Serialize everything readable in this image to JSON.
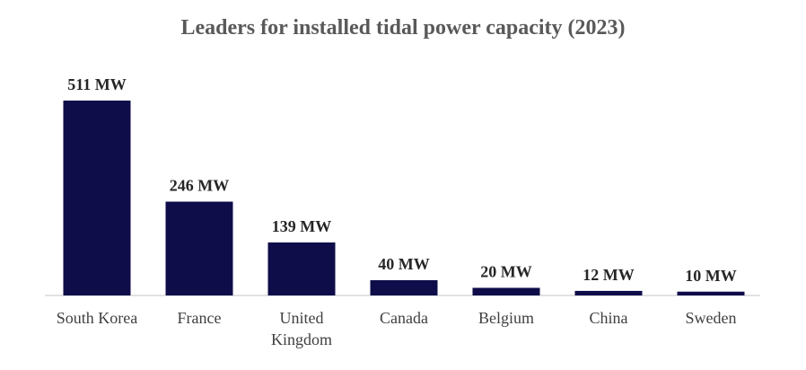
{
  "chart_data": {
    "type": "bar",
    "title": "Leaders for installed tidal power capacity (2023)",
    "categories": [
      [
        "South Korea"
      ],
      [
        "France"
      ],
      [
        "United",
        "Kingdom"
      ],
      [
        "Canada"
      ],
      [
        "Belgium"
      ],
      [
        "China"
      ],
      [
        "Sweden"
      ]
    ],
    "values": [
      511,
      246,
      139,
      40,
      20,
      12,
      10
    ],
    "data_labels": [
      "511 MW",
      "246 MW",
      "139 MW",
      "40 MW",
      "20 MW",
      "12 MW",
      "10 MW"
    ],
    "unit": "MW",
    "xlabel": "",
    "ylabel": "",
    "ylim": [
      0,
      511
    ],
    "grid": false,
    "legend": "none",
    "colors": {
      "bar": "#0f0c4a",
      "axis": "#d9d9d9",
      "title": "#595959"
    }
  }
}
